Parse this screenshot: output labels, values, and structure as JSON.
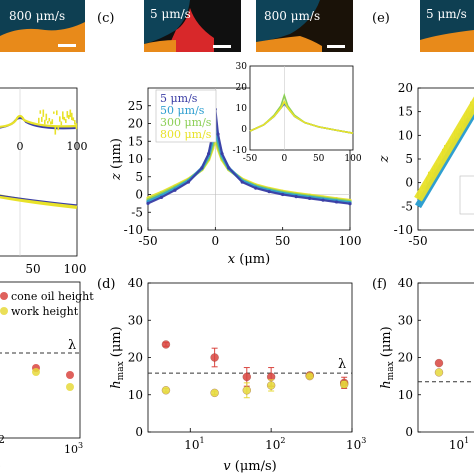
{
  "colors": {
    "v5": "#3b3ea5",
    "v50": "#2f9fd0",
    "v300": "#8ccf56",
    "v800": "#e8e229",
    "silicone": "#d9453f",
    "network": "#e6d93b",
    "image_bg": "#0e3f52",
    "image_fill": "#e88a1a"
  },
  "panel_labels": {
    "c": "(c)",
    "d": "(d)",
    "e": "(e)",
    "f": "(f)"
  },
  "images": {
    "left_partial": {
      "label": "800 μm/s"
    },
    "c_left": {
      "label": "5 μm/s"
    },
    "c_right": {
      "label": "800 μm/s"
    },
    "e_left": {
      "label": "5 μm/s"
    }
  },
  "legend_left_partial": [
    "cone oil height",
    "work height"
  ],
  "chart_data": [
    {
      "id": "panel-c-main",
      "type": "scatter",
      "xlabel_var": "x",
      "xlabel_unit": "(μm)",
      "ylabel_var": "z",
      "ylabel_unit": "(μm)",
      "xlim": [
        -50,
        100
      ],
      "ylim": [
        -10,
        30
      ],
      "xticks": [
        -50,
        0,
        50,
        100
      ],
      "yticks": [
        -10,
        -5,
        0,
        5,
        10,
        15,
        20,
        25
      ],
      "legend": [
        "5 μm/s",
        "50 μm/s",
        "300 μm/s",
        "800 μm/s"
      ],
      "legend_placement": "top-left",
      "series": [
        {
          "name": "5 μm/s",
          "peak": 24,
          "x": [
            -50,
            -40,
            -30,
            -20,
            -10,
            -5,
            -2,
            0,
            2,
            5,
            10,
            20,
            30,
            40,
            50,
            60,
            70,
            80,
            90,
            100
          ],
          "y": [
            -2.5,
            -0.8,
            1.2,
            3.5,
            7.5,
            11.5,
            17,
            24,
            17,
            11.5,
            7.5,
            3.5,
            1.8,
            0.8,
            0.0,
            -0.6,
            -1.1,
            -1.6,
            -2.1,
            -2.6
          ]
        },
        {
          "name": "50 μm/s",
          "peak": 21,
          "x": [
            -50,
            -40,
            -30,
            -20,
            -10,
            -5,
            -2,
            0,
            2,
            5,
            10,
            20,
            30,
            40,
            50,
            60,
            70,
            80,
            90,
            100
          ],
          "y": [
            -2.0,
            -0.3,
            1.6,
            3.8,
            7.4,
            11,
            15.5,
            21,
            15.5,
            11,
            7.4,
            3.8,
            2.1,
            1.1,
            0.3,
            -0.3,
            -0.8,
            -1.3,
            -1.8,
            -2.3
          ]
        },
        {
          "name": "300 μm/s",
          "peak": 18,
          "x": [
            -50,
            -40,
            -30,
            -20,
            -10,
            -5,
            -2,
            0,
            2,
            5,
            10,
            20,
            30,
            40,
            50,
            60,
            70,
            80,
            90,
            100
          ],
          "y": [
            -1.5,
            0.2,
            2.0,
            4.0,
            7.2,
            10.3,
            14,
            18,
            14,
            10.3,
            7.2,
            4.0,
            2.4,
            1.4,
            0.6,
            0.0,
            -0.5,
            -1.0,
            -1.5,
            -2.0
          ]
        },
        {
          "name": "800 μm/s",
          "peak": 16,
          "x": [
            -50,
            -40,
            -30,
            -20,
            -10,
            -5,
            -2,
            0,
            2,
            5,
            10,
            20,
            30,
            40,
            50,
            60,
            70,
            80,
            90,
            100
          ],
          "y": [
            -1.0,
            0.6,
            2.4,
            4.3,
            7.0,
            9.8,
            13,
            16,
            13,
            9.8,
            7.0,
            4.3,
            2.7,
            1.7,
            0.9,
            0.3,
            -0.2,
            -0.7,
            -1.2,
            -1.7
          ]
        }
      ]
    },
    {
      "id": "panel-c-inset",
      "type": "line",
      "xlim": [
        -50,
        100
      ],
      "ylim": [
        -10,
        30
      ],
      "xticks": [
        -50,
        0,
        50,
        100
      ],
      "yticks": [
        -10,
        0,
        10,
        20,
        30
      ],
      "series": [
        {
          "name": "5 μm/s",
          "x": [
            -50,
            -30,
            -15,
            -5,
            0,
            5,
            15,
            30,
            50,
            75,
            100
          ],
          "y": [
            -1,
            2,
            6,
            10,
            12,
            10,
            6,
            3,
            1,
            -0.5,
            -2
          ]
        },
        {
          "name": "50 μm/s",
          "x": [
            -50,
            -30,
            -15,
            -5,
            0,
            5,
            15,
            30,
            50,
            75,
            100
          ],
          "y": [
            -1,
            2,
            6,
            10,
            12.5,
            10,
            6,
            3,
            1,
            -0.5,
            -2
          ]
        },
        {
          "name": "300 μm/s",
          "x": [
            -50,
            -30,
            -15,
            -5,
            0,
            5,
            15,
            30,
            50,
            75,
            100
          ],
          "y": [
            -1,
            2,
            6.5,
            11,
            16,
            11,
            6.5,
            3,
            1,
            -0.5,
            -2
          ]
        },
        {
          "name": "800 μm/s",
          "x": [
            -50,
            -30,
            -15,
            -5,
            0,
            5,
            15,
            30,
            50,
            75,
            100
          ],
          "y": [
            -1,
            2,
            6,
            10,
            13,
            10,
            6,
            3,
            1,
            -0.5,
            -2
          ]
        }
      ]
    },
    {
      "id": "panel-d",
      "type": "scatter",
      "xscale": "log",
      "xlabel_var": "v",
      "xlabel_unit": "(μm/s)",
      "ylabel_var": "h",
      "ylabel_sub": "max",
      "ylabel_unit": "(μm)",
      "xlim": [
        3,
        1000
      ],
      "ylim": [
        0,
        40
      ],
      "xticks": [
        {
          "v": 10,
          "base": "10",
          "exp": "1"
        },
        {
          "v": 100,
          "base": "10",
          "exp": "2"
        },
        {
          "v": 1000,
          "base": "10",
          "exp": "3"
        }
      ],
      "yticks": [
        0,
        10,
        20,
        30,
        40
      ],
      "lambda_level": 15.8,
      "lambda_label": "λ",
      "series": [
        {
          "name": "silicone oil height",
          "x": [
            5,
            20,
            50,
            100,
            300,
            800
          ],
          "y": [
            23.5,
            20,
            14.8,
            14.8,
            15.2,
            13.2
          ],
          "err": [
            0.5,
            2.5,
            2.5,
            2.5,
            0.5,
            1.5
          ]
        },
        {
          "name": "network height",
          "x": [
            5,
            20,
            50,
            100,
            300,
            800
          ],
          "y": [
            11.2,
            10.5,
            11.2,
            12.5,
            15.0,
            12.8
          ],
          "err": [
            0.5,
            0.5,
            2.0,
            1.5,
            0.3,
            0.8
          ]
        }
      ]
    },
    {
      "id": "panel-f",
      "type": "scatter",
      "xscale": "log",
      "ylabel_var": "h",
      "ylabel_sub": "max",
      "ylabel_unit": "(μm)",
      "xlim": [
        2,
        30
      ],
      "ylim": [
        0,
        40
      ],
      "xticks": [
        {
          "v": 10,
          "base": "10",
          "exp": "1"
        }
      ],
      "yticks": [
        0,
        10,
        20,
        30,
        40
      ],
      "lambda_level": 13.5,
      "series": [
        {
          "name": "silicone oil height",
          "x": [
            5
          ],
          "y": [
            18.5
          ]
        },
        {
          "name": "network height",
          "x": [
            5
          ],
          "y": [
            16.0
          ]
        }
      ]
    },
    {
      "id": "panel-e",
      "type": "scatter",
      "xlim": [
        -50,
        100
      ],
      "ylim": [
        -10,
        20
      ],
      "xticks": [
        -50
      ],
      "yticks": [
        -10,
        -5,
        0,
        5,
        10,
        15,
        20
      ]
    },
    {
      "id": "panel-b-partial",
      "type": "scatter",
      "xticks": [
        50,
        100
      ],
      "xtick_labels": [
        "50",
        "100"
      ],
      "lambda_label": "λ"
    },
    {
      "id": "panel-left-bottom-partial",
      "type": "scatter",
      "xscale": "log",
      "xticks": [
        {
          "v": 1000,
          "base": "10",
          "exp": "3"
        }
      ],
      "partial_tick": "2",
      "lambda_label": "λ"
    }
  ]
}
